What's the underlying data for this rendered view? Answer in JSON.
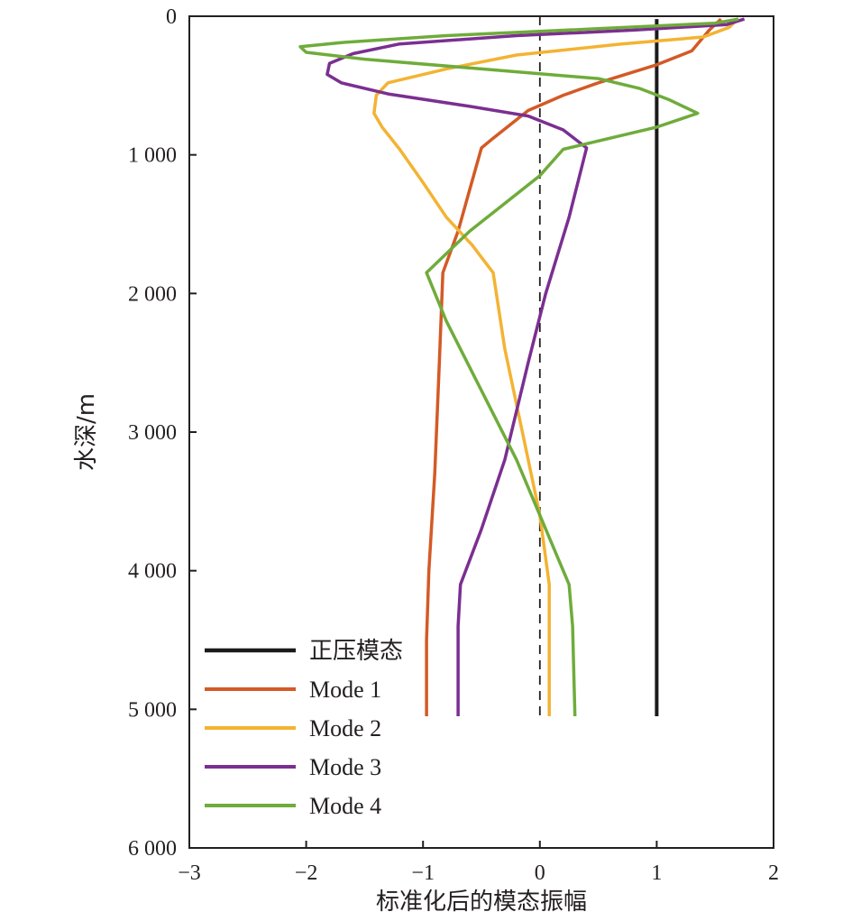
{
  "chart_data": {
    "type": "line",
    "xlabel": "标准化后的模态振幅",
    "ylabel": "水深/m",
    "xlim": [
      -3,
      2
    ],
    "ylim": [
      0,
      6000
    ],
    "y_inverted": true,
    "x_ticks": [
      -3,
      -2,
      -1,
      0,
      1,
      2
    ],
    "x_tick_labels": [
      "−3",
      "−2",
      "−1",
      "0",
      "1",
      "2"
    ],
    "y_ticks": [
      0,
      1000,
      2000,
      3000,
      4000,
      5000,
      6000
    ],
    "y_tick_labels": [
      "0",
      "1 000",
      "2 000",
      "3 000",
      "4 000",
      "5 000",
      "6 000"
    ],
    "grid": false,
    "legend_position": "bottom-left",
    "reference_line": {
      "x": 0,
      "style": "dashed",
      "y_range": [
        0,
        5050
      ]
    },
    "series": [
      {
        "name": "正压模态",
        "color": "#1a1a1a",
        "points": [
          [
            1,
            20
          ],
          [
            1,
            5050
          ]
        ]
      },
      {
        "name": "Mode 1",
        "color": "#d35a26",
        "points": [
          [
            1.55,
            20
          ],
          [
            1.45,
            100
          ],
          [
            1.3,
            250
          ],
          [
            1.0,
            350
          ],
          [
            0.5,
            480
          ],
          [
            0.2,
            570
          ],
          [
            -0.1,
            680
          ],
          [
            -0.25,
            780
          ],
          [
            -0.4,
            880
          ],
          [
            -0.5,
            950
          ],
          [
            -0.6,
            1250
          ],
          [
            -0.7,
            1550
          ],
          [
            -0.83,
            1850
          ],
          [
            -0.86,
            2500
          ],
          [
            -0.9,
            3300
          ],
          [
            -0.95,
            4000
          ],
          [
            -0.97,
            4500
          ],
          [
            -0.97,
            5050
          ]
        ]
      },
      {
        "name": "Mode 2",
        "color": "#f3b333",
        "points": [
          [
            1.68,
            30
          ],
          [
            1.62,
            80
          ],
          [
            1.4,
            150
          ],
          [
            0.7,
            200
          ],
          [
            -0.2,
            280
          ],
          [
            -0.8,
            380
          ],
          [
            -1.3,
            480
          ],
          [
            -1.4,
            570
          ],
          [
            -1.42,
            700
          ],
          [
            -1.35,
            800
          ],
          [
            -1.2,
            960
          ],
          [
            -1.0,
            1200
          ],
          [
            -0.8,
            1450
          ],
          [
            -0.58,
            1650
          ],
          [
            -0.4,
            1850
          ],
          [
            -0.3,
            2400
          ],
          [
            -0.15,
            3000
          ],
          [
            0.0,
            3600
          ],
          [
            0.08,
            4100
          ],
          [
            0.08,
            4500
          ],
          [
            0.08,
            5050
          ]
        ]
      },
      {
        "name": "Mode 3",
        "color": "#7b2f91",
        "points": [
          [
            1.75,
            20
          ],
          [
            1.6,
            60
          ],
          [
            0.8,
            100
          ],
          [
            -0.2,
            140
          ],
          [
            -1.2,
            200
          ],
          [
            -1.6,
            270
          ],
          [
            -1.8,
            340
          ],
          [
            -1.82,
            420
          ],
          [
            -1.7,
            480
          ],
          [
            -1.3,
            560
          ],
          [
            -0.6,
            650
          ],
          [
            -0.1,
            720
          ],
          [
            0.2,
            820
          ],
          [
            0.4,
            950
          ],
          [
            0.25,
            1450
          ],
          [
            0.05,
            2000
          ],
          [
            -0.1,
            2500
          ],
          [
            -0.3,
            3200
          ],
          [
            -0.5,
            3700
          ],
          [
            -0.68,
            4100
          ],
          [
            -0.7,
            4400
          ],
          [
            -0.7,
            5050
          ]
        ]
      },
      {
        "name": "Mode 4",
        "color": "#6fac3b",
        "points": [
          [
            1.7,
            20
          ],
          [
            1.5,
            50
          ],
          [
            0.5,
            90
          ],
          [
            -0.8,
            140
          ],
          [
            -1.7,
            190
          ],
          [
            -2.05,
            220
          ],
          [
            -2.0,
            260
          ],
          [
            -1.5,
            310
          ],
          [
            -0.5,
            380
          ],
          [
            0.5,
            450
          ],
          [
            0.85,
            520
          ],
          [
            1.1,
            600
          ],
          [
            1.35,
            700
          ],
          [
            1.0,
            800
          ],
          [
            0.6,
            880
          ],
          [
            0.2,
            960
          ],
          [
            0.0,
            1150
          ],
          [
            -0.3,
            1350
          ],
          [
            -0.6,
            1550
          ],
          [
            -0.97,
            1850
          ],
          [
            -0.8,
            2200
          ],
          [
            -0.5,
            2700
          ],
          [
            -0.2,
            3200
          ],
          [
            0.0,
            3600
          ],
          [
            0.25,
            4100
          ],
          [
            0.28,
            4400
          ],
          [
            0.3,
            5050
          ]
        ]
      }
    ]
  }
}
